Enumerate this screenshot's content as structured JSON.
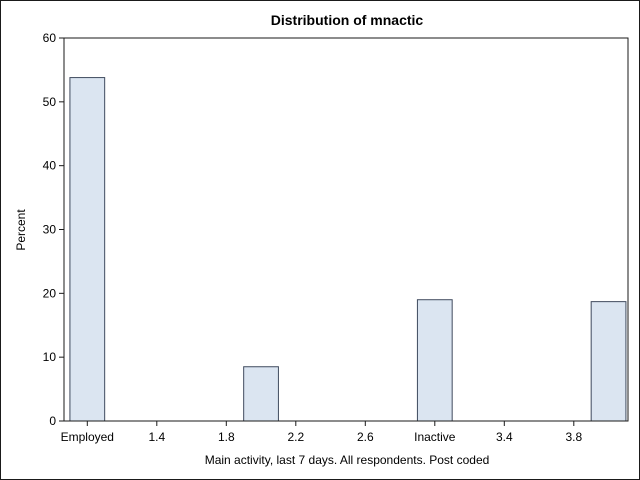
{
  "chart_data": {
    "type": "bar",
    "title": "Distribution of mnactic",
    "xlabel": "Main activity, last 7 days. All respondents. Post coded",
    "ylabel": "Percent",
    "xlim": [
      1.0,
      4.0
    ],
    "ylim": [
      0,
      60
    ],
    "grid": false,
    "legend": "none",
    "x_ticks": [
      {
        "value": 1.0,
        "label": "Employed"
      },
      {
        "value": 1.4,
        "label": "1.4"
      },
      {
        "value": 1.8,
        "label": "1.8"
      },
      {
        "value": 2.2,
        "label": "2.2"
      },
      {
        "value": 2.6,
        "label": "2.6"
      },
      {
        "value": 3.0,
        "label": "Inactive"
      },
      {
        "value": 3.4,
        "label": "3.4"
      },
      {
        "value": 3.8,
        "label": "3.8"
      }
    ],
    "y_ticks": [
      0,
      10,
      20,
      30,
      40,
      50,
      60
    ],
    "bars": [
      {
        "x": 1.0,
        "value": 53.8
      },
      {
        "x": 2.0,
        "value": 8.5
      },
      {
        "x": 3.0,
        "value": 19.0
      },
      {
        "x": 4.0,
        "value": 18.7
      }
    ],
    "bar_width": 0.2,
    "colors": {
      "bar_fill": "#dbe5f1",
      "bar_edge": "#3f4a5e",
      "axis": "#1a1a1a"
    }
  }
}
